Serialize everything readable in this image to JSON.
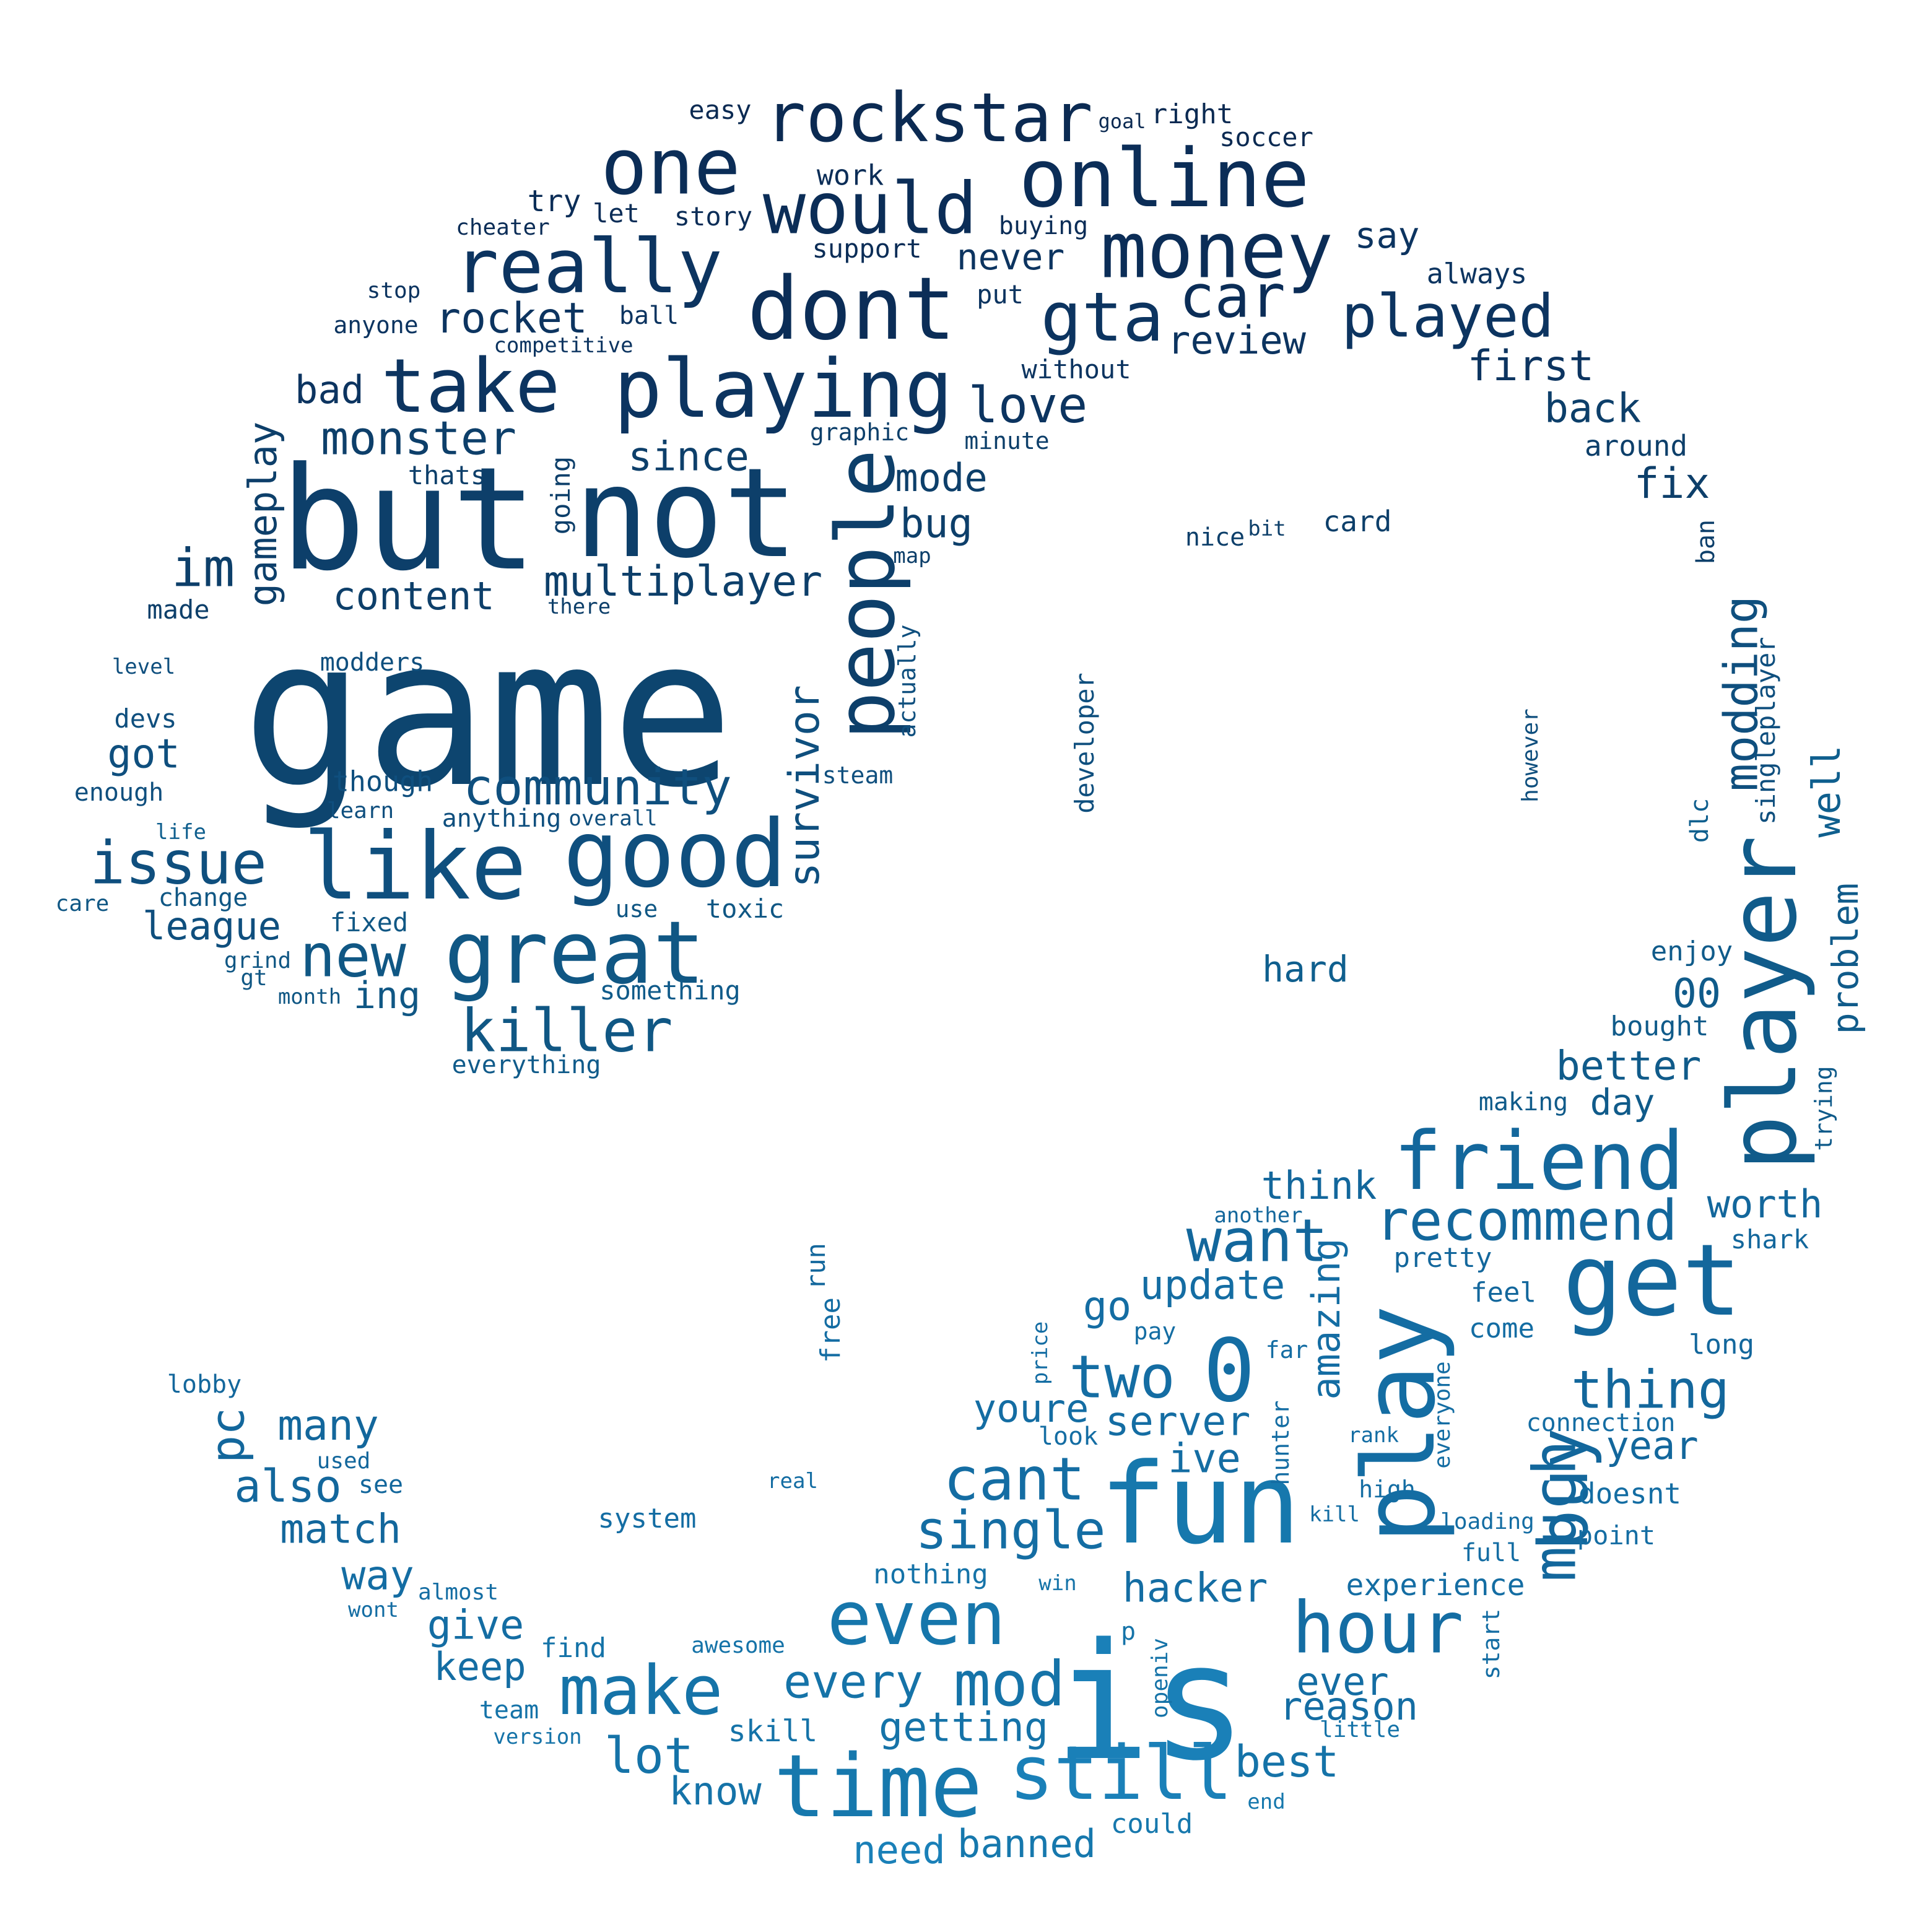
{
  "palette": {
    "background": "#ffffff",
    "darkest": "#0b2d57",
    "dark": "#0d456f",
    "mid": "#0f5f8e",
    "light": "#167ab0"
  },
  "words": [
    {
      "text": "game",
      "color": "#0d456f"
    },
    {
      "text": "but",
      "color": "#0d3f6a"
    },
    {
      "text": "not",
      "color": "#0d3f6a"
    },
    {
      "text": "is",
      "color": "#1a80b8"
    },
    {
      "text": "fun",
      "color": "#1678ad"
    },
    {
      "text": "play",
      "color": "#146da3"
    },
    {
      "text": "get",
      "color": "#13679c"
    },
    {
      "text": "player",
      "color": "#105b8a"
    },
    {
      "text": "like",
      "color": "#0f4f7e"
    },
    {
      "text": "good",
      "color": "#0f4f7e"
    },
    {
      "text": "great",
      "color": "#105784"
    },
    {
      "text": "dont",
      "color": "#0b2d57"
    },
    {
      "text": "playing",
      "color": "#0c3460"
    },
    {
      "text": "online",
      "color": "#0b2d57"
    },
    {
      "text": "people",
      "color": "#0d3f6a"
    },
    {
      "text": "time",
      "color": "#1678ad"
    },
    {
      "text": "friend",
      "color": "#13679c"
    },
    {
      "text": "rockstar",
      "color": "#0b2a52"
    },
    {
      "text": "one",
      "color": "#0b2d57"
    },
    {
      "text": "would",
      "color": "#0b2d57"
    },
    {
      "text": "money",
      "color": "#0b2d57"
    },
    {
      "text": "really",
      "color": "#0c3460"
    },
    {
      "text": "take",
      "color": "#0c3460"
    },
    {
      "text": "even",
      "color": "#1676ab"
    },
    {
      "text": "still",
      "color": "#1a80b8"
    },
    {
      "text": "hour",
      "color": "#146da3"
    },
    {
      "text": "make",
      "color": "#1573a8"
    },
    {
      "text": "mod",
      "color": "#1573a8"
    },
    {
      "text": "0",
      "color": "#146da3"
    },
    {
      "text": "buy",
      "color": "#13679c"
    },
    {
      "text": "gta",
      "color": "#0c3460"
    },
    {
      "text": "car",
      "color": "#0b2d57"
    },
    {
      "text": "played",
      "color": "#0c3460"
    },
    {
      "text": "killer",
      "color": "#105784"
    },
    {
      "text": "new",
      "color": "#105784"
    },
    {
      "text": "issue",
      "color": "#0f4f7e"
    },
    {
      "text": "community",
      "color": "#0f4f7e"
    },
    {
      "text": "recommend",
      "color": "#13679c"
    },
    {
      "text": "want",
      "color": "#13679c"
    },
    {
      "text": "much",
      "color": "#13679c"
    },
    {
      "text": "cant",
      "color": "#146da3"
    },
    {
      "text": "single",
      "color": "#146da3"
    },
    {
      "text": "two",
      "color": "#146da3"
    },
    {
      "text": "thing",
      "color": "#13679c"
    },
    {
      "text": "every",
      "color": "#1573a8"
    },
    {
      "text": "lot",
      "color": "#1573a8"
    },
    {
      "text": "love",
      "color": "#0c3460"
    },
    {
      "text": "monster",
      "color": "#0d3f6a"
    },
    {
      "text": "multiplayer",
      "color": "#0d3f6a"
    },
    {
      "text": "modding",
      "color": "#0f4f7e"
    },
    {
      "text": "im",
      "color": "#0d3f6a"
    },
    {
      "text": "survivor",
      "color": "#0f4f7e"
    },
    {
      "text": "rocket",
      "color": "#0c3460"
    },
    {
      "text": "review",
      "color": "#0c3460"
    },
    {
      "text": "first",
      "color": "#0c3460"
    },
    {
      "text": "back",
      "color": "#0d3f6a"
    },
    {
      "text": "fix",
      "color": "#0d3f6a"
    },
    {
      "text": "since",
      "color": "#0d3f6a"
    },
    {
      "text": "mode",
      "color": "#0d3f6a"
    },
    {
      "text": "bug",
      "color": "#0d3f6a"
    },
    {
      "text": "never",
      "color": "#0c3460"
    },
    {
      "text": "say",
      "color": "#0c3460"
    },
    {
      "text": "bad",
      "color": "#0c3460"
    },
    {
      "text": "gameplay",
      "color": "#0d3f6a"
    },
    {
      "text": "content",
      "color": "#0d3f6a"
    },
    {
      "text": "got",
      "color": "#0f4f7e"
    },
    {
      "text": "league",
      "color": "#0f4f7e"
    },
    {
      "text": "ing",
      "color": "#105784"
    },
    {
      "text": "well",
      "color": "#0f5f8e"
    },
    {
      "text": "problem",
      "color": "#105b8a"
    },
    {
      "text": "00",
      "color": "#105b8a"
    },
    {
      "text": "better",
      "color": "#105b8a"
    },
    {
      "text": "day",
      "color": "#105b8a"
    },
    {
      "text": "think",
      "color": "#13679c"
    },
    {
      "text": "worth",
      "color": "#13679c"
    },
    {
      "text": "update",
      "color": "#146da3"
    },
    {
      "text": "go",
      "color": "#146da3"
    },
    {
      "text": "amazing",
      "color": "#146da3"
    },
    {
      "text": "server",
      "color": "#146da3"
    },
    {
      "text": "ive",
      "color": "#146da3"
    },
    {
      "text": "youre",
      "color": "#146da3"
    },
    {
      "text": "hacker",
      "color": "#146da3"
    },
    {
      "text": "many",
      "color": "#13679c"
    },
    {
      "text": "pc",
      "color": "#13679c"
    },
    {
      "text": "also",
      "color": "#13679c"
    },
    {
      "text": "match",
      "color": "#13679c"
    },
    {
      "text": "way",
      "color": "#146da3"
    },
    {
      "text": "give",
      "color": "#146da3"
    },
    {
      "text": "keep",
      "color": "#146da3"
    },
    {
      "text": "getting",
      "color": "#1573a8"
    },
    {
      "text": "know",
      "color": "#1573a8"
    },
    {
      "text": "best",
      "color": "#1573a8"
    },
    {
      "text": "ever",
      "color": "#146da3"
    },
    {
      "text": "reason",
      "color": "#146da3"
    },
    {
      "text": "year",
      "color": "#13679c"
    },
    {
      "text": "need",
      "color": "#1a80b8"
    },
    {
      "text": "banned",
      "color": "#1678ad"
    },
    {
      "text": "experience",
      "color": "#146da3"
    },
    {
      "text": "hard",
      "color": "#0f5f8e"
    },
    {
      "text": "easy",
      "color": "#0b2a52"
    },
    {
      "text": "goal",
      "color": "#0b2a52"
    },
    {
      "text": "right",
      "color": "#0b2a52"
    },
    {
      "text": "soccer",
      "color": "#0b2a52"
    },
    {
      "text": "work",
      "color": "#0b2d57"
    },
    {
      "text": "try",
      "color": "#0b2d57"
    },
    {
      "text": "let",
      "color": "#0b2d57"
    },
    {
      "text": "story",
      "color": "#0b2d57"
    },
    {
      "text": "cheater",
      "color": "#0b2d57"
    },
    {
      "text": "buying",
      "color": "#0b2d57"
    },
    {
      "text": "support",
      "color": "#0b2d57"
    },
    {
      "text": "always",
      "color": "#0c3460"
    },
    {
      "text": "stop",
      "color": "#0c3460"
    },
    {
      "text": "ball",
      "color": "#0c3460"
    },
    {
      "text": "put",
      "color": "#0c3460"
    },
    {
      "text": "anyone",
      "color": "#0c3460"
    },
    {
      "text": "competitive",
      "color": "#0c3460"
    },
    {
      "text": "without",
      "color": "#0c3460"
    },
    {
      "text": "graphic",
      "color": "#0d3f6a"
    },
    {
      "text": "minute",
      "color": "#0d3f6a"
    },
    {
      "text": "around",
      "color": "#0d3f6a"
    },
    {
      "text": "thats",
      "color": "#0d3f6a"
    },
    {
      "text": "going",
      "color": "#0d3f6a"
    },
    {
      "text": "nice",
      "color": "#0d3f6a"
    },
    {
      "text": "bit",
      "color": "#0d3f6a"
    },
    {
      "text": "card",
      "color": "#0d3f6a"
    },
    {
      "text": "map",
      "color": "#0d3f6a"
    },
    {
      "text": "ban",
      "color": "#0d3f6a"
    },
    {
      "text": "made",
      "color": "#0d3f6a"
    },
    {
      "text": "there",
      "color": "#0d3f6a"
    },
    {
      "text": "actually",
      "color": "#0f4f7e"
    },
    {
      "text": "singleplayer",
      "color": "#0f4f7e"
    },
    {
      "text": "level",
      "color": "#0f4f7e"
    },
    {
      "text": "modders",
      "color": "#0f4f7e"
    },
    {
      "text": "developer",
      "color": "#0f4f7e"
    },
    {
      "text": "however",
      "color": "#0f4f7e"
    },
    {
      "text": "devs",
      "color": "#0f4f7e"
    },
    {
      "text": "steam",
      "color": "#0f4f7e"
    },
    {
      "text": "enough",
      "color": "#0f4f7e"
    },
    {
      "text": "though",
      "color": "#0f4f7e"
    },
    {
      "text": "learn",
      "color": "#0f4f7e"
    },
    {
      "text": "anything",
      "color": "#0f4f7e"
    },
    {
      "text": "overall",
      "color": "#0f4f7e"
    },
    {
      "text": "dlc",
      "color": "#0f5f8e"
    },
    {
      "text": "life",
      "color": "#0f5f8e"
    },
    {
      "text": "change",
      "color": "#105784"
    },
    {
      "text": "care",
      "color": "#105784"
    },
    {
      "text": "use",
      "color": "#105784"
    },
    {
      "text": "toxic",
      "color": "#105784"
    },
    {
      "text": "fixed",
      "color": "#105784"
    },
    {
      "text": "grind",
      "color": "#105784"
    },
    {
      "text": "gt",
      "color": "#105784"
    },
    {
      "text": "month",
      "color": "#105784"
    },
    {
      "text": "something",
      "color": "#105b8a"
    },
    {
      "text": "enjoy",
      "color": "#105b8a"
    },
    {
      "text": "bought",
      "color": "#105b8a"
    },
    {
      "text": "everything",
      "color": "#105b8a"
    },
    {
      "text": "making",
      "color": "#105b8a"
    },
    {
      "text": "trying",
      "color": "#105b8a"
    },
    {
      "text": "another",
      "color": "#13679c"
    },
    {
      "text": "shark",
      "color": "#13679c"
    },
    {
      "text": "pretty",
      "color": "#13679c"
    },
    {
      "text": "feel",
      "color": "#13679c"
    },
    {
      "text": "run",
      "color": "#13679c"
    },
    {
      "text": "free",
      "color": "#146da3"
    },
    {
      "text": "pay",
      "color": "#146da3"
    },
    {
      "text": "come",
      "color": "#146da3"
    },
    {
      "text": "far",
      "color": "#146da3"
    },
    {
      "text": "long",
      "color": "#13679c"
    },
    {
      "text": "price",
      "color": "#146da3"
    },
    {
      "text": "lobby",
      "color": "#13679c"
    },
    {
      "text": "connection",
      "color": "#146da3"
    },
    {
      "text": "look",
      "color": "#146da3"
    },
    {
      "text": "rank",
      "color": "#146da3"
    },
    {
      "text": "everyone",
      "color": "#146da3"
    },
    {
      "text": "hunter",
      "color": "#146da3"
    },
    {
      "text": "used",
      "color": "#13679c"
    },
    {
      "text": "see",
      "color": "#13679c"
    },
    {
      "text": "real",
      "color": "#146da3"
    },
    {
      "text": "high",
      "color": "#146da3"
    },
    {
      "text": "doesnt",
      "color": "#146da3"
    },
    {
      "text": "kill",
      "color": "#146da3"
    },
    {
      "text": "loading",
      "color": "#146da3"
    },
    {
      "text": "system",
      "color": "#146da3"
    },
    {
      "text": "point",
      "color": "#146da3"
    },
    {
      "text": "full",
      "color": "#146da3"
    },
    {
      "text": "nothing",
      "color": "#1573a8"
    },
    {
      "text": "win",
      "color": "#1573a8"
    },
    {
      "text": "almost",
      "color": "#146da3"
    },
    {
      "text": "wont",
      "color": "#146da3"
    },
    {
      "text": "start",
      "color": "#146da3"
    },
    {
      "text": "p",
      "color": "#1573a8"
    },
    {
      "text": "openiv",
      "color": "#1573a8"
    },
    {
      "text": "find",
      "color": "#1573a8"
    },
    {
      "text": "awesome",
      "color": "#1573a8"
    },
    {
      "text": "team",
      "color": "#1573a8"
    },
    {
      "text": "version",
      "color": "#1573a8"
    },
    {
      "text": "skill",
      "color": "#1573a8"
    },
    {
      "text": "little",
      "color": "#1573a8"
    },
    {
      "text": "end",
      "color": "#1678ad"
    },
    {
      "text": "could",
      "color": "#1678ad"
    }
  ]
}
